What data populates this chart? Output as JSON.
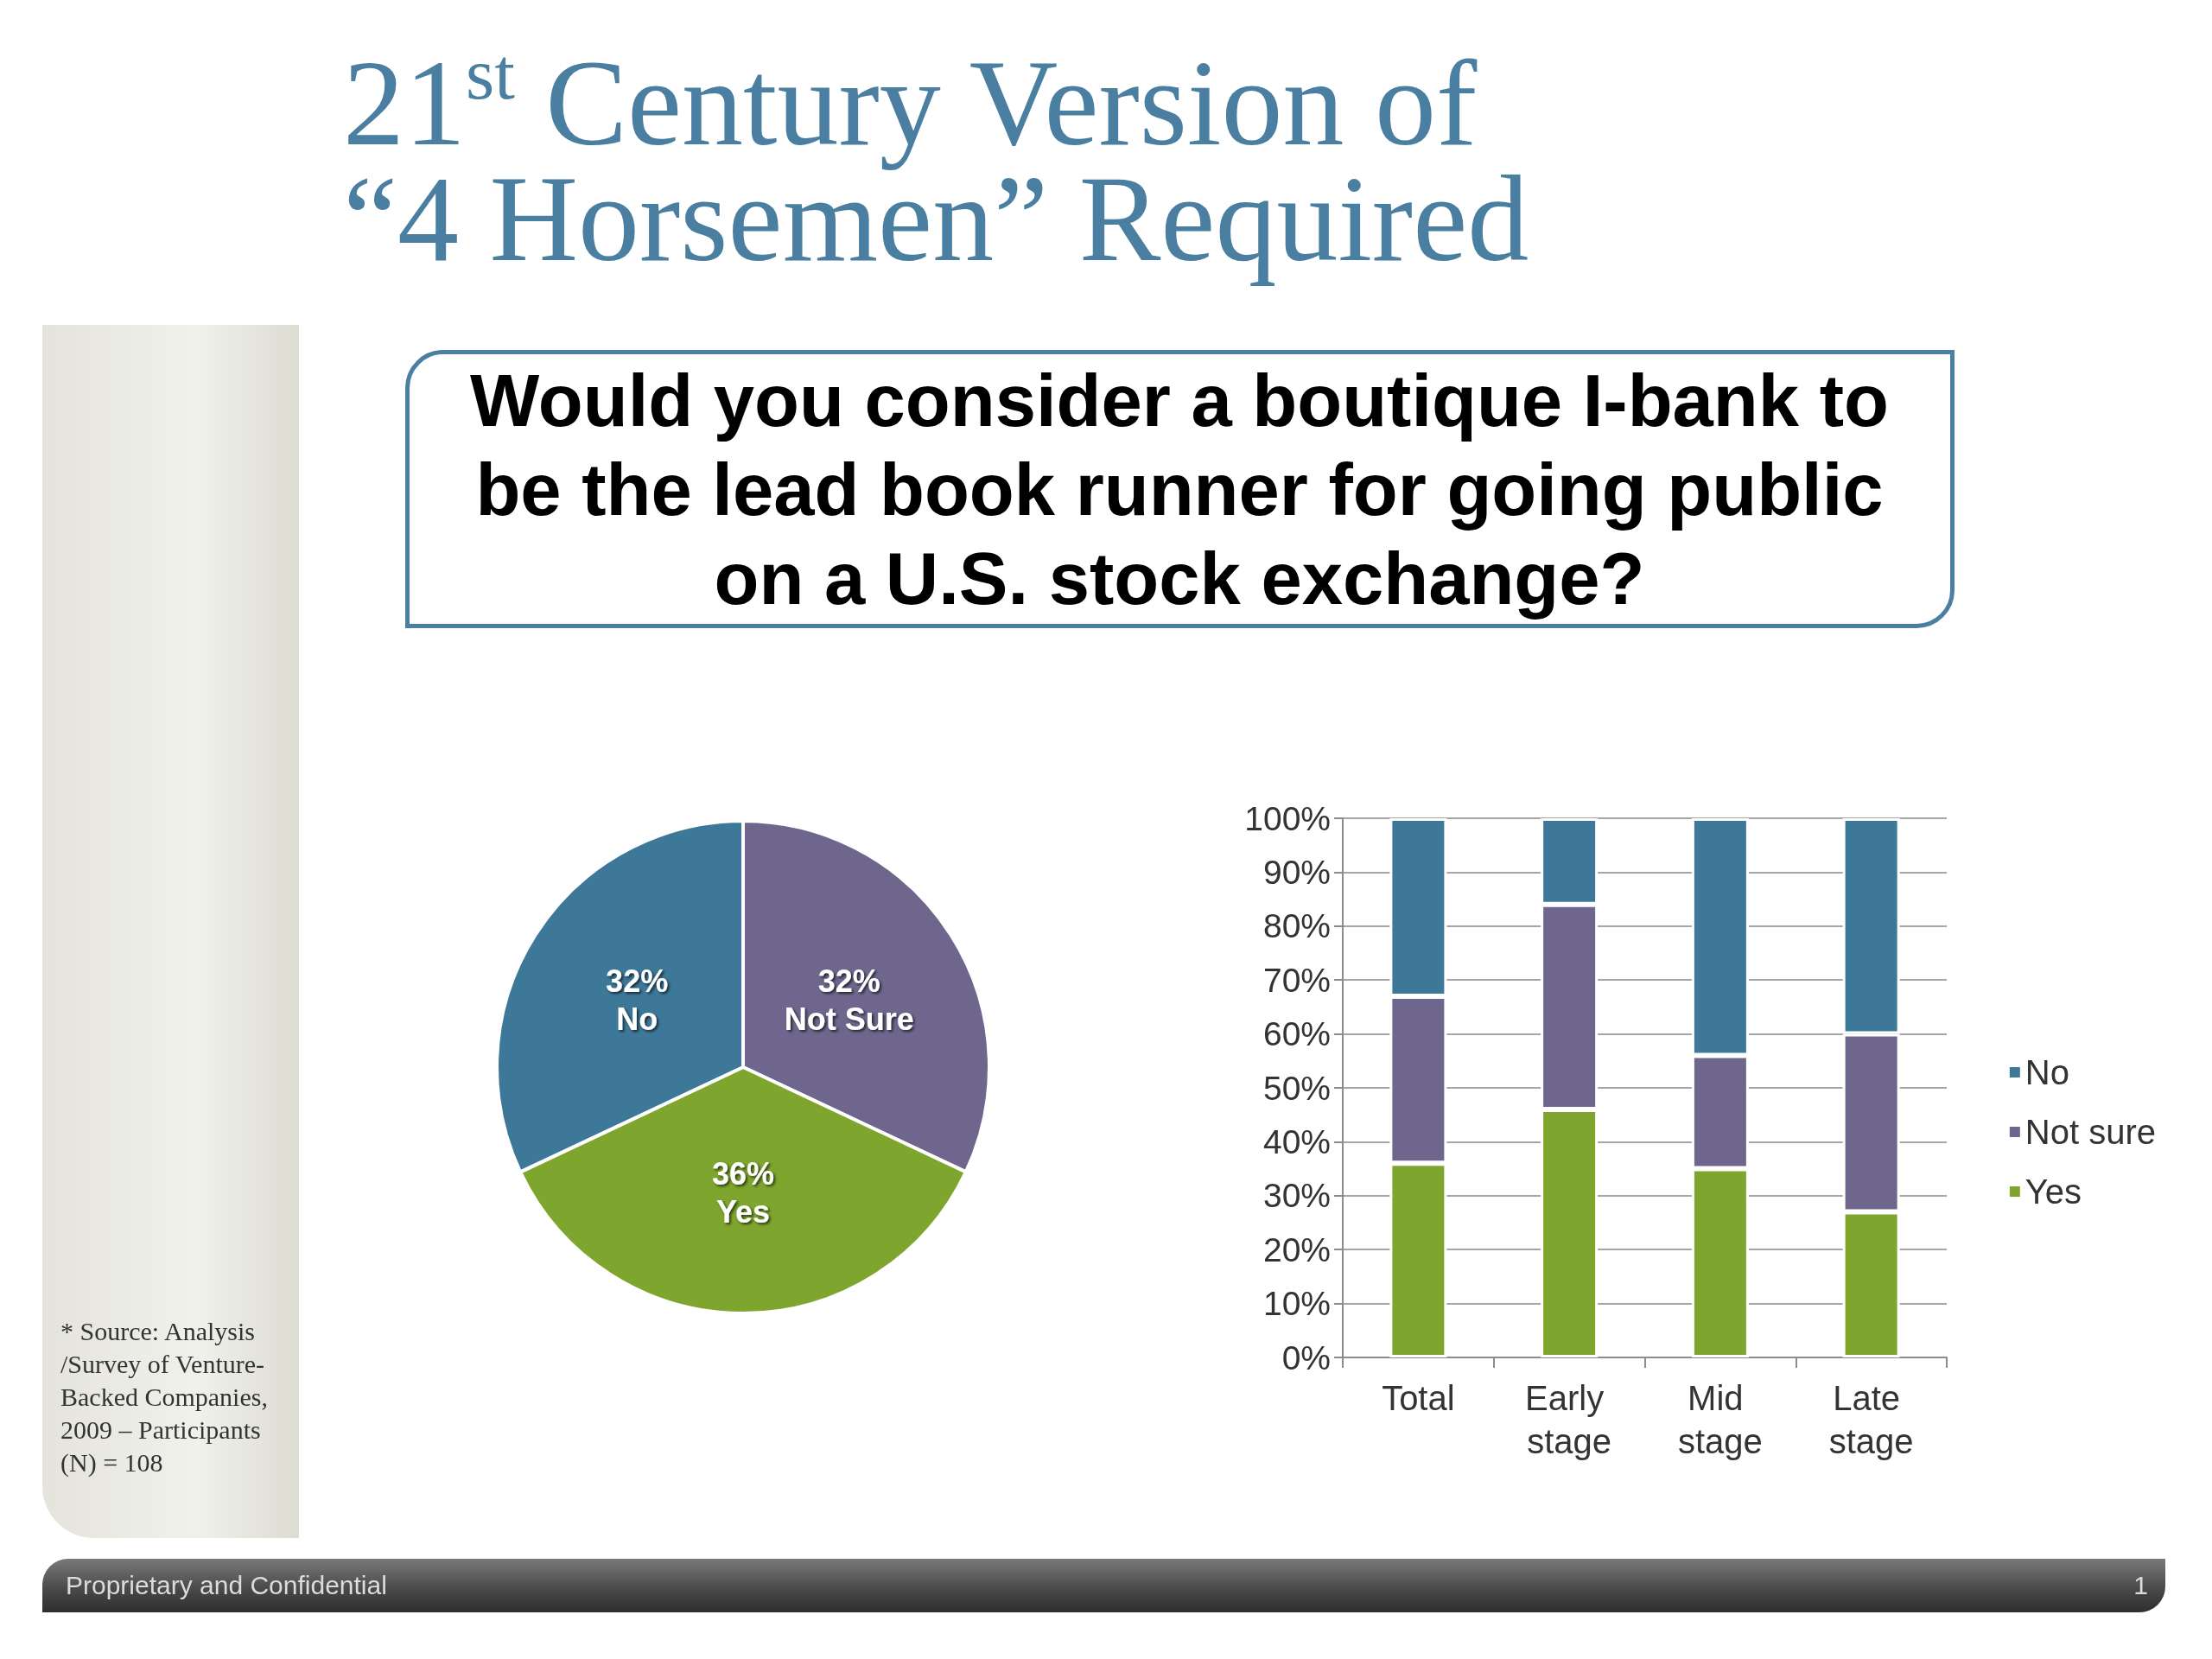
{
  "chart_data": [
    {
      "type": "pie",
      "title": "21$^{st}$ Century Version of “4 Horsemen” Required",
      "subtitle": "Would you consider a boutique I-bank to be the lead book runner for going public on a U.S. stock exchange?",
      "categories": [
        "Not Sure",
        "Yes",
        "No"
      ],
      "values": [
        32,
        36,
        32
      ],
      "colors": [
        "#6e668c",
        "#7ea52e",
        "#3d7899"
      ],
      "value_labels": [
        "32%",
        "36%",
        "32%"
      ],
      "annotations": [
        "* Source: Analysis /Survey of Venture-Backed Companies, 2009 – Participants (N) = 108",
        "Proprietary and Confidential",
        "1"
      ]
    },
    {
      "type": "bar",
      "stacked": true,
      "categories": [
        "Total",
        "Early stage",
        "Mid stage",
        "Late stage"
      ],
      "series": [
        {
          "name": "Yes",
          "color": "#7ea52e",
          "values": [
            36,
            46,
            35,
            27
          ]
        },
        {
          "name": "Not sure",
          "color": "#6e668c",
          "values": [
            31,
            38,
            21,
            33
          ]
        },
        {
          "name": "No",
          "color": "#3d7899",
          "values": [
            33,
            16,
            44,
            40
          ]
        }
      ],
      "ylim": [
        0,
        100
      ],
      "yticks": [
        {
          "value": 0,
          "label": "0%"
        },
        {
          "value": 10,
          "label": "10%"
        },
        {
          "value": 20,
          "label": "20%"
        },
        {
          "value": 30,
          "label": "30%"
        },
        {
          "value": 40,
          "label": "40%"
        },
        {
          "value": 50,
          "label": "50%"
        },
        {
          "value": 60,
          "label": "60%"
        },
        {
          "value": 70,
          "label": "70%"
        },
        {
          "value": 80,
          "label": "80%"
        },
        {
          "value": 90,
          "label": "90%"
        },
        {
          "value": 100,
          "label": "100%"
        }
      ],
      "grid": "y",
      "legend": "right"
    }
  ]
}
